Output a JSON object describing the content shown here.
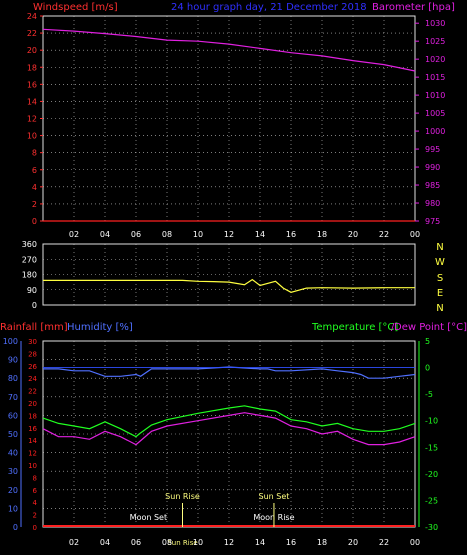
{
  "header": {
    "left": "Windspeed [m/s]",
    "center": "24 hour graph day, 21 December 2018",
    "right": "Barometer [hpa]"
  },
  "x_ticks": [
    "02",
    "04",
    "06",
    "08",
    "10",
    "12",
    "14",
    "16",
    "18",
    "20",
    "22",
    "00"
  ],
  "colors": {
    "grid": "#c8c8c8",
    "axis_left_top": "#ff3030",
    "barometer": "#e020e0",
    "wind_dir": "#ffff40",
    "humidity": "#5070ff",
    "temperature": "#20ff20",
    "dewpoint": "#e020e0",
    "rain": "#ff2020",
    "sun": "#ffff80"
  },
  "chart_data": [
    {
      "type": "line",
      "panel": "wind-baro",
      "title": "24 hour graph day, 21 December 2018",
      "ylabel_left": "Windspeed [m/s]",
      "ylabel_right": "Barometer [hpa]",
      "left_ticks": [
        "0",
        "2",
        "4",
        "6",
        "8",
        "10",
        "12",
        "14",
        "16",
        "18",
        "20",
        "22",
        "24"
      ],
      "right_ticks": [
        "975",
        "980",
        "985",
        "990",
        "995",
        "1000",
        "1005",
        "1010",
        "1015",
        "1020",
        "1025",
        "1030"
      ],
      "ylim_left": [
        0,
        24
      ],
      "ylim_right": [
        975,
        1032
      ],
      "series": [
        {
          "name": "Windspeed [m/s]",
          "axis": "left",
          "x": [
            0,
            2,
            4,
            6,
            8,
            10,
            12,
            14,
            16,
            18,
            20,
            22,
            24
          ],
          "values": [
            0,
            0,
            0,
            0,
            0,
            0,
            0,
            0,
            0,
            0,
            0,
            0,
            0
          ]
        },
        {
          "name": "Barometer [hpa]",
          "axis": "right",
          "x": [
            0,
            2,
            4,
            6,
            8,
            10,
            12,
            14,
            16,
            18,
            20,
            22,
            24
          ],
          "values": [
            1028.3,
            1027.8,
            1027.1,
            1026.3,
            1025.3,
            1025.0,
            1024.2,
            1023.0,
            1021.8,
            1020.9,
            1019.6,
            1018.5,
            1016.7
          ]
        }
      ]
    },
    {
      "type": "line",
      "panel": "wind-direction",
      "left_ticks": [
        "0",
        "90",
        "180",
        "270",
        "360"
      ],
      "compass": [
        "N",
        "W",
        "S",
        "E",
        "N"
      ],
      "ylim": [
        0,
        360
      ],
      "series": [
        {
          "name": "Wind direction",
          "x": [
            0,
            6,
            9,
            10,
            11,
            12,
            13,
            13.5,
            14,
            15,
            15.5,
            16,
            17,
            18,
            20,
            22,
            24
          ],
          "values": [
            145,
            145,
            145,
            140,
            138,
            135,
            120,
            150,
            115,
            140,
            100,
            75,
            100,
            102,
            100,
            102,
            102
          ]
        }
      ]
    },
    {
      "type": "line",
      "panel": "rain-hum-temp",
      "ylabel_left_1": "Rainfall [mm]",
      "ylabel_left_2": "Humidity [%]",
      "ylabel_right": "Temperature [°C]/Dew Point [°C]",
      "rain_ticks": [
        "0",
        "2",
        "4",
        "6",
        "8",
        "10",
        "12",
        "14",
        "16",
        "18",
        "20",
        "22",
        "24",
        "26",
        "28",
        "30"
      ],
      "humidity_ticks": [
        "0",
        "10",
        "20",
        "30",
        "40",
        "50",
        "60",
        "70",
        "80",
        "90",
        "100"
      ],
      "temp_ticks": [
        "5",
        "0",
        "-5",
        "-10",
        "-15",
        "-20",
        "-25",
        "-30"
      ],
      "ylim_humidity": [
        0,
        100
      ],
      "ylim_temp": [
        -30,
        5
      ],
      "series": [
        {
          "name": "Humidity [%]",
          "x": [
            0,
            1,
            2,
            3,
            4,
            5,
            6,
            6.3,
            7,
            8,
            10,
            12,
            14,
            14.5,
            15,
            15.5,
            16,
            18,
            19,
            20,
            20.5,
            21,
            22,
            23,
            24
          ],
          "values": [
            85,
            85,
            84,
            84,
            81,
            81,
            82,
            81,
            85,
            85,
            85,
            86,
            85,
            85,
            84,
            84,
            84,
            85,
            84,
            83,
            82,
            80,
            80,
            81,
            82
          ]
        },
        {
          "name": "Temperature [°C]",
          "x": [
            0,
            1,
            2,
            3,
            4,
            5,
            6,
            6.2,
            7,
            8,
            10,
            12,
            13,
            14,
            15,
            16,
            17,
            18,
            19,
            20,
            21,
            22,
            23,
            24
          ],
          "values": [
            -9.5,
            -10.5,
            -11,
            -11.5,
            -10.2,
            -11.5,
            -13,
            -12.5,
            -10.8,
            -9.8,
            -8.6,
            -7.6,
            -7.2,
            -7.8,
            -8.2,
            -9.8,
            -10.2,
            -11,
            -10.5,
            -11.5,
            -12,
            -12,
            -11.5,
            -10.5
          ]
        },
        {
          "name": "Dew Point [°C]",
          "x": [
            0,
            1,
            2,
            3,
            4,
            5,
            6,
            6.2,
            7,
            8,
            10,
            12,
            13,
            14,
            15,
            16,
            17,
            18,
            19,
            20,
            21,
            22,
            23,
            24
          ],
          "values": [
            -11.5,
            -13,
            -13,
            -13.5,
            -12,
            -13,
            -14.5,
            -14,
            -12,
            -11,
            -10,
            -9,
            -8.5,
            -9,
            -9.5,
            -11,
            -11.5,
            -12.5,
            -12,
            -13.5,
            -14.5,
            -14.5,
            -14,
            -13
          ]
        },
        {
          "name": "Rainfall [mm]",
          "x": [
            0,
            24
          ],
          "values": [
            0,
            0
          ]
        }
      ],
      "annotations": [
        {
          "label": "Moon Set",
          "x": 6.8,
          "row": "lower"
        },
        {
          "label": "Sun Rise",
          "x": 9.0,
          "row": "upper"
        },
        {
          "label": "Sun Rise",
          "x": 9.0,
          "row": "axis"
        },
        {
          "label": "Sun Set",
          "x": 14.9,
          "row": "upper"
        },
        {
          "label": "Moon Rise",
          "x": 14.9,
          "row": "lower"
        }
      ]
    }
  ],
  "wind_dir_label_values": {},
  "bottom_labels": {
    "rain": "Rainfall [mm]",
    "humidity": "Humidity [%]",
    "temp": "Temperature [°C]",
    "dew": "Dew Point [°C]"
  }
}
